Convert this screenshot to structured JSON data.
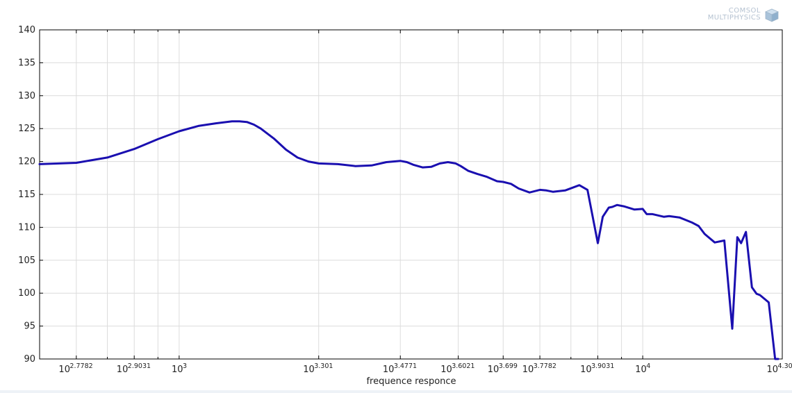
{
  "brand": {
    "line1": "COMSOL",
    "line2": "MULTIPHYSICS"
  },
  "chart_data": {
    "type": "line",
    "title": "",
    "xlabel": "frequence responce",
    "ylabel": "",
    "x_scale": "log10",
    "xlim": [
      500,
      20000
    ],
    "ylim": [
      90,
      140
    ],
    "grid": true,
    "y_ticks": [
      90,
      95,
      100,
      105,
      110,
      115,
      120,
      125,
      130,
      135,
      140
    ],
    "x_ticks": [
      {
        "x": 600,
        "base": "10",
        "exp": "2.7782"
      },
      {
        "x": 800,
        "base": "10",
        "exp": "2.9031"
      },
      {
        "x": 1000,
        "base": "10",
        "exp": "3"
      },
      {
        "x": 2000,
        "base": "10",
        "exp": "3.301"
      },
      {
        "x": 3000,
        "base": "10",
        "exp": "3.4771"
      },
      {
        "x": 4000,
        "base": "10",
        "exp": "3.6021"
      },
      {
        "x": 5000,
        "base": "10",
        "exp": "3.699"
      },
      {
        "x": 6000,
        "base": "10",
        "exp": "3.7782"
      },
      {
        "x": 8000,
        "base": "10",
        "exp": "3.9031"
      },
      {
        "x": 10000,
        "base": "10",
        "exp": "4"
      },
      {
        "x": 20000,
        "base": "10",
        "exp": "4.301"
      }
    ],
    "minor_x_gridlines": [
      700,
      900,
      7000,
      9000
    ],
    "line_color": "#1a0fb0",
    "series": [
      {
        "name": "",
        "x": [
          500,
          600,
          700,
          800,
          900,
          1000,
          1100,
          1200,
          1300,
          1350,
          1400,
          1450,
          1500,
          1600,
          1700,
          1800,
          1900,
          2000,
          2200,
          2400,
          2600,
          2800,
          3000,
          3100,
          3200,
          3350,
          3500,
          3650,
          3800,
          3950,
          4050,
          4200,
          4400,
          4600,
          4850,
          5000,
          5200,
          5400,
          5700,
          6000,
          6200,
          6400,
          6800,
          7300,
          7600,
          8000,
          8200,
          8450,
          8600,
          8800,
          9100,
          9400,
          9600,
          10000,
          10200,
          10500,
          10800,
          11100,
          11400,
          12000,
          12400,
          12800,
          13200,
          13600,
          14300,
          15000,
          15600,
          16000,
          16300,
          16700,
          17200,
          17600,
          17900,
          18700,
          19300,
          19600
        ],
        "y": [
          119.6,
          119.8,
          120.6,
          121.9,
          123.4,
          124.6,
          125.4,
          125.8,
          126.1,
          126.1,
          126.0,
          125.6,
          125.0,
          123.5,
          121.8,
          120.6,
          120.0,
          119.7,
          119.6,
          119.3,
          119.4,
          119.9,
          120.1,
          119.9,
          119.5,
          119.1,
          119.2,
          119.7,
          119.9,
          119.7,
          119.3,
          118.6,
          118.1,
          117.7,
          117.0,
          116.9,
          116.6,
          115.9,
          115.3,
          115.7,
          115.6,
          115.4,
          115.6,
          116.4,
          115.7,
          107.6,
          111.6,
          113.0,
          113.1,
          113.4,
          113.2,
          112.9,
          112.7,
          112.8,
          112.0,
          112.0,
          111.8,
          111.6,
          111.7,
          111.5,
          111.1,
          110.7,
          110.2,
          109.0,
          107.7,
          108.0,
          94.6,
          108.5,
          107.6,
          109.3,
          100.9,
          99.9,
          99.7,
          98.6,
          90.0,
          90.0
        ]
      }
    ]
  }
}
